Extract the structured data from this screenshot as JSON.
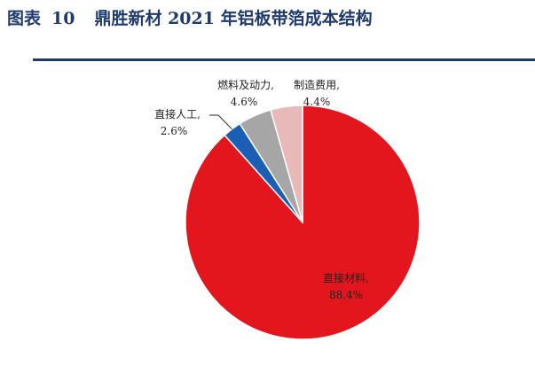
{
  "header": {
    "figure_prefix": "图表",
    "figure_number": "10",
    "title": "鼎胜新材 2021 年铝板带箔成本结构"
  },
  "colors": {
    "title": "#1f3a6e",
    "rule": "#1f3a6e"
  },
  "chart_data": {
    "type": "pie",
    "title": "鼎胜新材 2021 年铝板带箔成本结构",
    "start_angle_deg": 0,
    "direction": "clockwise",
    "slices": [
      {
        "label": "直接材料,",
        "value": 88.4,
        "value_text": "88.4%",
        "color": "#e3161e"
      },
      {
        "label": "直接人工,",
        "value": 2.6,
        "value_text": "2.6%",
        "color": "#1a5fb4"
      },
      {
        "label": "燃料及动力,",
        "value": 4.6,
        "value_text": "4.6%",
        "color": "#a6a6a6"
      },
      {
        "label": "制造费用,",
        "value": 4.4,
        "value_text": "4.4%",
        "color": "#e8b9b9"
      }
    ]
  }
}
